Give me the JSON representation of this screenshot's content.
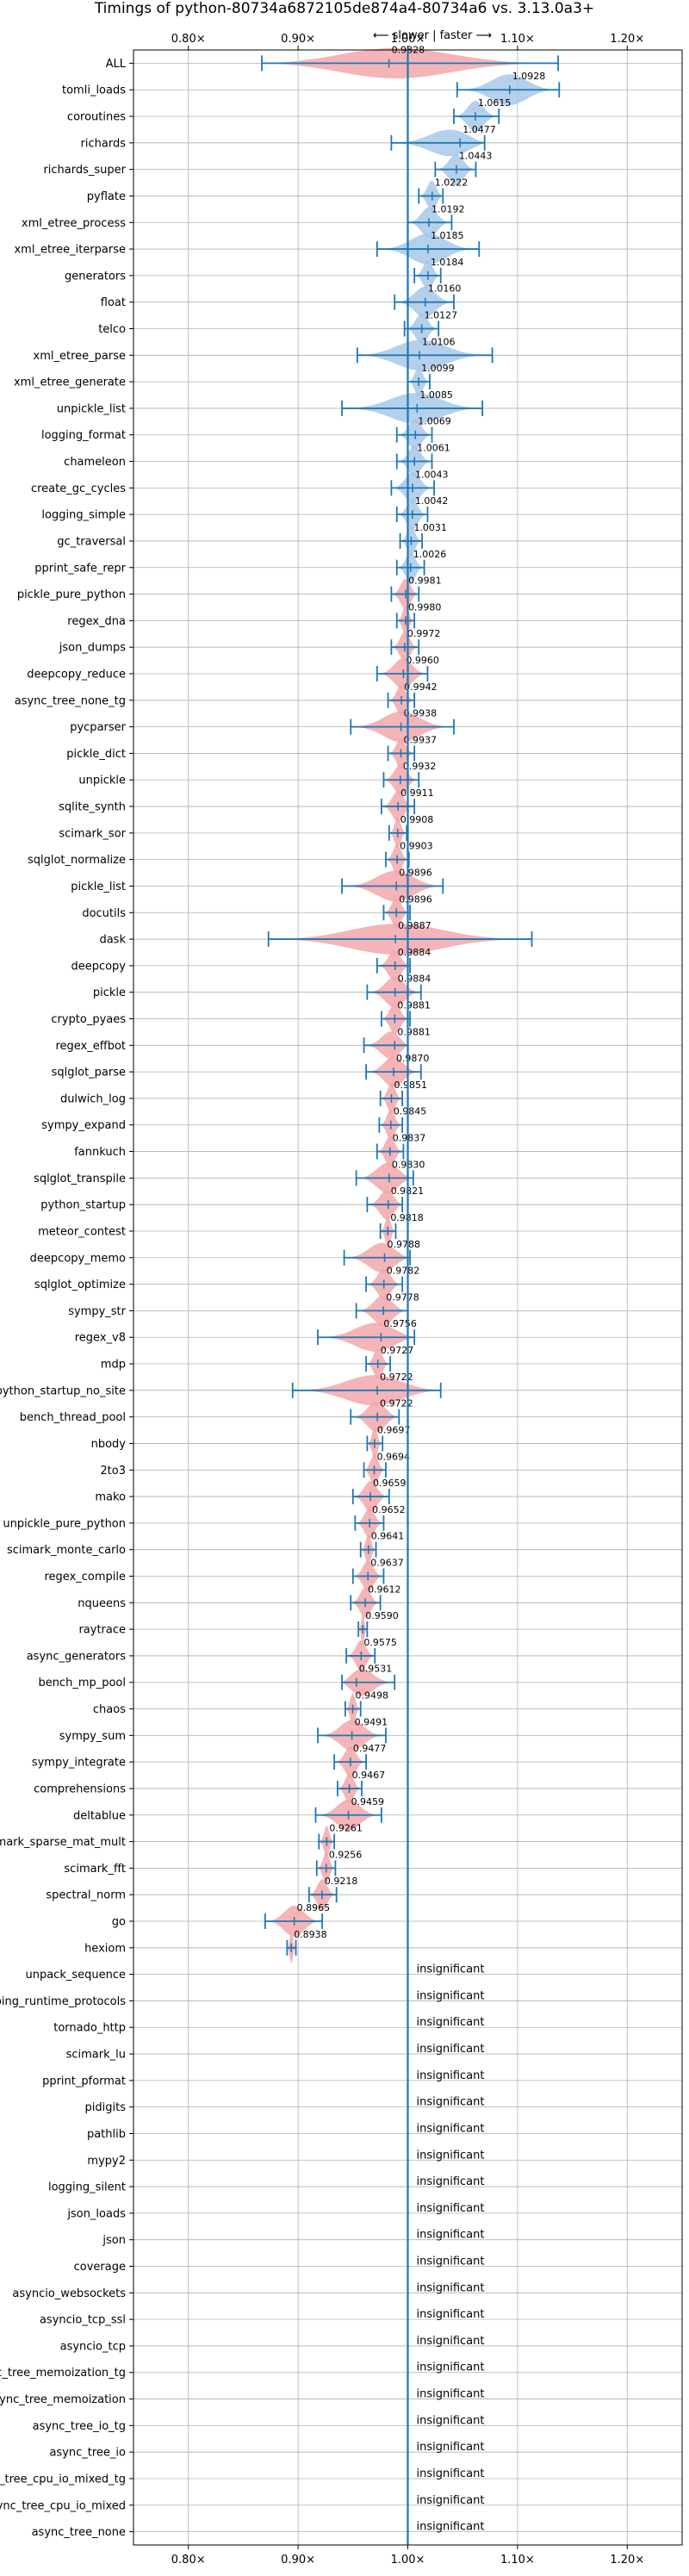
{
  "chart_data": {
    "type": "violin",
    "title": "Timings of python-80734a6872105de874a4-80734a6 vs. 3.13.0a3+",
    "direction_note": "⟵ slower | faster ⟶",
    "xlim": [
      0.75,
      1.25
    ],
    "xticks": [
      0.8,
      0.9,
      1.0,
      1.1,
      1.2
    ],
    "xtick_labels": [
      "0.80×",
      "0.90×",
      "1.00×",
      "1.10×",
      "1.20×"
    ],
    "reference_line": 1.0,
    "insignificant_label": "insignificant",
    "colors": {
      "faster": "#a8c8e6",
      "slower": "#f3a7aa",
      "line": "#1f77b4",
      "grid": "#b0b0b0"
    },
    "benchmarks": [
      {
        "name": "ALL",
        "value": 0.9828,
        "label": "0.9828",
        "lo": 0.867,
        "hi": 1.137,
        "sig": true
      },
      {
        "name": "tomli_loads",
        "value": 1.0928,
        "label": "1.0928",
        "lo": 1.045,
        "hi": 1.138,
        "sig": true
      },
      {
        "name": "coroutines",
        "value": 1.0615,
        "label": "1.0615",
        "lo": 1.042,
        "hi": 1.083,
        "sig": true
      },
      {
        "name": "richards",
        "value": 1.0477,
        "label": "1.0477",
        "lo": 0.985,
        "hi": 1.07,
        "sig": true
      },
      {
        "name": "richards_super",
        "value": 1.0443,
        "label": "1.0443",
        "lo": 1.025,
        "hi": 1.062,
        "sig": true
      },
      {
        "name": "pyflate",
        "value": 1.0222,
        "label": "1.0222",
        "lo": 1.01,
        "hi": 1.032,
        "sig": true
      },
      {
        "name": "xml_etree_process",
        "value": 1.0192,
        "label": "1.0192",
        "lo": 1.0,
        "hi": 1.04,
        "sig": true
      },
      {
        "name": "xml_etree_iterparse",
        "value": 1.0185,
        "label": "1.0185",
        "lo": 0.972,
        "hi": 1.065,
        "sig": true
      },
      {
        "name": "generators",
        "value": 1.0184,
        "label": "1.0184",
        "lo": 1.006,
        "hi": 1.03,
        "sig": true
      },
      {
        "name": "float",
        "value": 1.016,
        "label": "1.0160",
        "lo": 0.988,
        "hi": 1.042,
        "sig": true
      },
      {
        "name": "telco",
        "value": 1.0127,
        "label": "1.0127",
        "lo": 0.997,
        "hi": 1.028,
        "sig": true
      },
      {
        "name": "xml_etree_parse",
        "value": 1.0106,
        "label": "1.0106",
        "lo": 0.954,
        "hi": 1.077,
        "sig": true
      },
      {
        "name": "xml_etree_generate",
        "value": 1.0099,
        "label": "1.0099",
        "lo": 1.0,
        "hi": 1.02,
        "sig": true
      },
      {
        "name": "unpickle_list",
        "value": 1.0085,
        "label": "1.0085",
        "lo": 0.94,
        "hi": 1.068,
        "sig": true
      },
      {
        "name": "logging_format",
        "value": 1.0069,
        "label": "1.0069",
        "lo": 0.99,
        "hi": 1.022,
        "sig": true
      },
      {
        "name": "chameleon",
        "value": 1.0061,
        "label": "1.0061",
        "lo": 0.99,
        "hi": 1.022,
        "sig": true
      },
      {
        "name": "create_gc_cycles",
        "value": 1.0043,
        "label": "1.0043",
        "lo": 0.985,
        "hi": 1.024,
        "sig": true
      },
      {
        "name": "logging_simple",
        "value": 1.0042,
        "label": "1.0042",
        "lo": 0.99,
        "hi": 1.018,
        "sig": true
      },
      {
        "name": "gc_traversal",
        "value": 1.0031,
        "label": "1.0031",
        "lo": 0.993,
        "hi": 1.013,
        "sig": true
      },
      {
        "name": "pprint_safe_repr",
        "value": 1.0026,
        "label": "1.0026",
        "lo": 0.99,
        "hi": 1.015,
        "sig": true
      },
      {
        "name": "pickle_pure_python",
        "value": 0.9981,
        "label": "0.9981",
        "lo": 0.985,
        "hi": 1.01,
        "sig": true
      },
      {
        "name": "regex_dna",
        "value": 0.998,
        "label": "0.9980",
        "lo": 0.99,
        "hi": 1.006,
        "sig": true
      },
      {
        "name": "json_dumps",
        "value": 0.9972,
        "label": "0.9972",
        "lo": 0.985,
        "hi": 1.01,
        "sig": true
      },
      {
        "name": "deepcopy_reduce",
        "value": 0.996,
        "label": "0.9960",
        "lo": 0.972,
        "hi": 1.018,
        "sig": true
      },
      {
        "name": "async_tree_none_tg",
        "value": 0.9942,
        "label": "0.9942",
        "lo": 0.982,
        "hi": 1.006,
        "sig": true
      },
      {
        "name": "pycparser",
        "value": 0.9938,
        "label": "0.9938",
        "lo": 0.948,
        "hi": 1.042,
        "sig": true
      },
      {
        "name": "pickle_dict",
        "value": 0.9937,
        "label": "0.9937",
        "lo": 0.982,
        "hi": 1.006,
        "sig": true
      },
      {
        "name": "unpickle",
        "value": 0.9932,
        "label": "0.9932",
        "lo": 0.978,
        "hi": 1.01,
        "sig": true
      },
      {
        "name": "sqlite_synth",
        "value": 0.9911,
        "label": "0.9911",
        "lo": 0.976,
        "hi": 1.006,
        "sig": true
      },
      {
        "name": "scimark_sor",
        "value": 0.9908,
        "label": "0.9908",
        "lo": 0.983,
        "hi": 0.999,
        "sig": true
      },
      {
        "name": "sqlglot_normalize",
        "value": 0.9903,
        "label": "0.9903",
        "lo": 0.98,
        "hi": 1.001,
        "sig": true
      },
      {
        "name": "pickle_list",
        "value": 0.9896,
        "label": "0.9896",
        "lo": 0.94,
        "hi": 1.032,
        "sig": true
      },
      {
        "name": "docutils",
        "value": 0.9896,
        "label": "0.9896",
        "lo": 0.978,
        "hi": 1.002,
        "sig": true
      },
      {
        "name": "dask",
        "value": 0.9887,
        "label": "0.9887",
        "lo": 0.873,
        "hi": 1.113,
        "sig": true
      },
      {
        "name": "deepcopy",
        "value": 0.9884,
        "label": "0.9884",
        "lo": 0.972,
        "hi": 1.002,
        "sig": true
      },
      {
        "name": "pickle",
        "value": 0.9884,
        "label": "0.9884",
        "lo": 0.963,
        "hi": 1.012,
        "sig": true
      },
      {
        "name": "crypto_pyaes",
        "value": 0.9881,
        "label": "0.9881",
        "lo": 0.976,
        "hi": 1.002,
        "sig": true
      },
      {
        "name": "regex_effbot",
        "value": 0.9881,
        "label": "0.9881",
        "lo": 0.96,
        "hi": 1.0,
        "sig": true
      },
      {
        "name": "sqlglot_parse",
        "value": 0.987,
        "label": "0.9870",
        "lo": 0.962,
        "hi": 1.012,
        "sig": true
      },
      {
        "name": "dulwich_log",
        "value": 0.9851,
        "label": "0.9851",
        "lo": 0.975,
        "hi": 0.995,
        "sig": true
      },
      {
        "name": "sympy_expand",
        "value": 0.9845,
        "label": "0.9845",
        "lo": 0.974,
        "hi": 0.995,
        "sig": true
      },
      {
        "name": "fannkuch",
        "value": 0.9837,
        "label": "0.9837",
        "lo": 0.972,
        "hi": 0.996,
        "sig": true
      },
      {
        "name": "sqlglot_transpile",
        "value": 0.983,
        "label": "0.9830",
        "lo": 0.953,
        "hi": 1.005,
        "sig": true
      },
      {
        "name": "python_startup",
        "value": 0.9821,
        "label": "0.9821",
        "lo": 0.963,
        "hi": 0.995,
        "sig": true
      },
      {
        "name": "meteor_contest",
        "value": 0.9818,
        "label": "0.9818",
        "lo": 0.975,
        "hi": 0.989,
        "sig": true
      },
      {
        "name": "deepcopy_memo",
        "value": 0.9788,
        "label": "0.9788",
        "lo": 0.942,
        "hi": 1.002,
        "sig": true
      },
      {
        "name": "sqlglot_optimize",
        "value": 0.9782,
        "label": "0.9782",
        "lo": 0.962,
        "hi": 0.995,
        "sig": true
      },
      {
        "name": "sympy_str",
        "value": 0.9778,
        "label": "0.9778",
        "lo": 0.953,
        "hi": 1.0,
        "sig": true
      },
      {
        "name": "regex_v8",
        "value": 0.9756,
        "label": "0.9756",
        "lo": 0.918,
        "hi": 1.006,
        "sig": true
      },
      {
        "name": "mdp",
        "value": 0.9727,
        "label": "0.9727",
        "lo": 0.962,
        "hi": 0.984,
        "sig": true
      },
      {
        "name": "python_startup_no_site",
        "value": 0.9722,
        "label": "0.9722",
        "lo": 0.895,
        "hi": 1.03,
        "sig": true
      },
      {
        "name": "bench_thread_pool",
        "value": 0.9722,
        "label": "0.9722",
        "lo": 0.948,
        "hi": 0.992,
        "sig": true
      },
      {
        "name": "nbody",
        "value": 0.9697,
        "label": "0.9697",
        "lo": 0.963,
        "hi": 0.977,
        "sig": true
      },
      {
        "name": "2to3",
        "value": 0.9694,
        "label": "0.9694",
        "lo": 0.96,
        "hi": 0.98,
        "sig": true
      },
      {
        "name": "mako",
        "value": 0.9659,
        "label": "0.9659",
        "lo": 0.95,
        "hi": 0.983,
        "sig": true
      },
      {
        "name": "unpickle_pure_python",
        "value": 0.9652,
        "label": "0.9652",
        "lo": 0.952,
        "hi": 0.978,
        "sig": true
      },
      {
        "name": "scimark_monte_carlo",
        "value": 0.9641,
        "label": "0.9641",
        "lo": 0.957,
        "hi": 0.971,
        "sig": true
      },
      {
        "name": "regex_compile",
        "value": 0.9637,
        "label": "0.9637",
        "lo": 0.95,
        "hi": 0.978,
        "sig": true
      },
      {
        "name": "nqueens",
        "value": 0.9612,
        "label": "0.9612",
        "lo": 0.948,
        "hi": 0.975,
        "sig": true
      },
      {
        "name": "raytrace",
        "value": 0.959,
        "label": "0.9590",
        "lo": 0.955,
        "hi": 0.963,
        "sig": true
      },
      {
        "name": "async_generators",
        "value": 0.9575,
        "label": "0.9575",
        "lo": 0.944,
        "hi": 0.97,
        "sig": true
      },
      {
        "name": "bench_mp_pool",
        "value": 0.9531,
        "label": "0.9531",
        "lo": 0.94,
        "hi": 0.988,
        "sig": true
      },
      {
        "name": "chaos",
        "value": 0.9498,
        "label": "0.9498",
        "lo": 0.943,
        "hi": 0.957,
        "sig": true
      },
      {
        "name": "sympy_sum",
        "value": 0.9491,
        "label": "0.9491",
        "lo": 0.918,
        "hi": 0.98,
        "sig": true
      },
      {
        "name": "sympy_integrate",
        "value": 0.9477,
        "label": "0.9477",
        "lo": 0.933,
        "hi": 0.962,
        "sig": true
      },
      {
        "name": "comprehensions",
        "value": 0.9467,
        "label": "0.9467",
        "lo": 0.936,
        "hi": 0.958,
        "sig": true
      },
      {
        "name": "deltablue",
        "value": 0.9459,
        "label": "0.9459",
        "lo": 0.916,
        "hi": 0.976,
        "sig": true
      },
      {
        "name": "scimark_sparse_mat_mult",
        "value": 0.9261,
        "label": "0.9261",
        "lo": 0.919,
        "hi": 0.933,
        "sig": true
      },
      {
        "name": "scimark_fft",
        "value": 0.9256,
        "label": "0.9256",
        "lo": 0.917,
        "hi": 0.934,
        "sig": true
      },
      {
        "name": "spectral_norm",
        "value": 0.9218,
        "label": "0.9218",
        "lo": 0.91,
        "hi": 0.935,
        "sig": true
      },
      {
        "name": "go",
        "value": 0.8965,
        "label": "0.8965",
        "lo": 0.87,
        "hi": 0.922,
        "sig": true
      },
      {
        "name": "hexiom",
        "value": 0.8938,
        "label": "0.8938",
        "lo": 0.89,
        "hi": 0.898,
        "sig": true
      },
      {
        "name": "unpack_sequence",
        "sig": false
      },
      {
        "name": "typing_runtime_protocols",
        "sig": false
      },
      {
        "name": "tornado_http",
        "sig": false
      },
      {
        "name": "scimark_lu",
        "sig": false
      },
      {
        "name": "pprint_pformat",
        "sig": false
      },
      {
        "name": "pidigits",
        "sig": false
      },
      {
        "name": "pathlib",
        "sig": false
      },
      {
        "name": "mypy2",
        "sig": false
      },
      {
        "name": "logging_silent",
        "sig": false
      },
      {
        "name": "json_loads",
        "sig": false
      },
      {
        "name": "json",
        "sig": false
      },
      {
        "name": "coverage",
        "sig": false
      },
      {
        "name": "asyncio_websockets",
        "sig": false
      },
      {
        "name": "asyncio_tcp_ssl",
        "sig": false
      },
      {
        "name": "asyncio_tcp",
        "sig": false
      },
      {
        "name": "async_tree_memoization_tg",
        "sig": false
      },
      {
        "name": "async_tree_memoization",
        "sig": false
      },
      {
        "name": "async_tree_io_tg",
        "sig": false
      },
      {
        "name": "async_tree_io",
        "sig": false
      },
      {
        "name": "async_tree_cpu_io_mixed_tg",
        "sig": false
      },
      {
        "name": "async_tree_cpu_io_mixed",
        "sig": false
      },
      {
        "name": "async_tree_none",
        "sig": false
      }
    ]
  }
}
